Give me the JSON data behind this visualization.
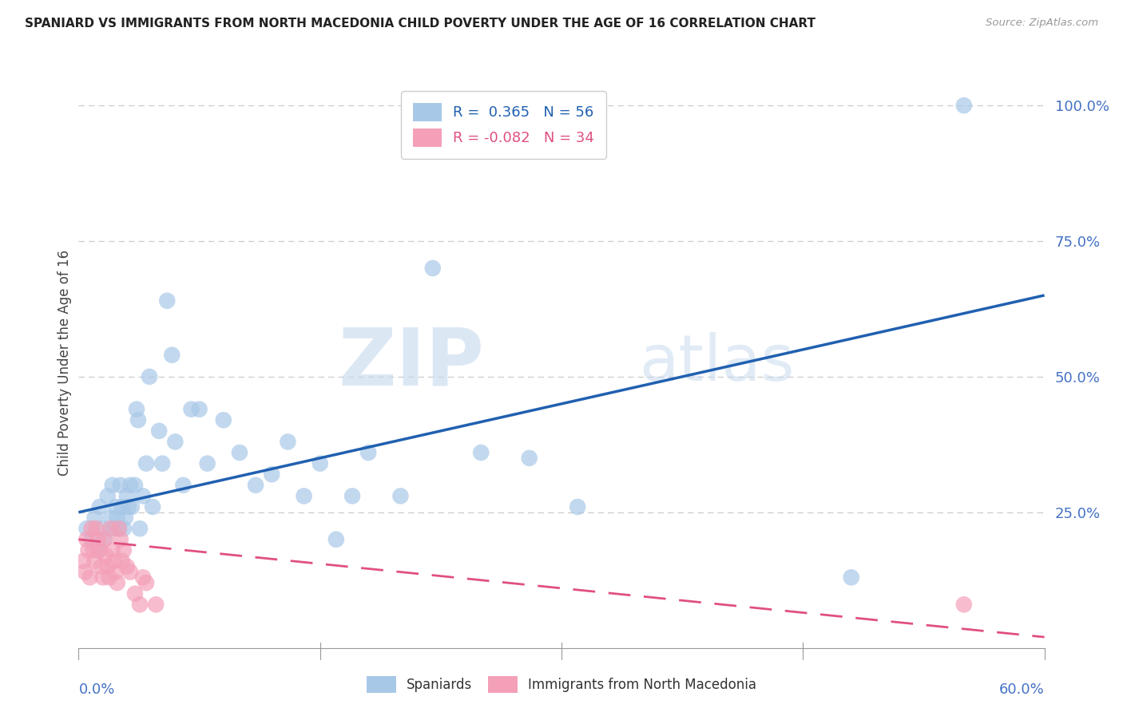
{
  "title": "SPANIARD VS IMMIGRANTS FROM NORTH MACEDONIA CHILD POVERTY UNDER THE AGE OF 16 CORRELATION CHART",
  "source": "Source: ZipAtlas.com",
  "ylabel": "Child Poverty Under the Age of 16",
  "legend_blue_label": "Spaniards",
  "legend_pink_label": "Immigrants from North Macedonia",
  "r_blue": 0.365,
  "n_blue": 56,
  "r_pink": -0.082,
  "n_pink": 34,
  "blue_color": "#a8c8e8",
  "pink_color": "#f4a0b8",
  "trendline_blue_color": "#2060b0",
  "trendline_pink_color": "#e05080",
  "watermark_zip": "ZIP",
  "watermark_atlas": "atlas",
  "blue_scatter_x": [
    0.005,
    0.008,
    0.01,
    0.012,
    0.013,
    0.015,
    0.016,
    0.018,
    0.02,
    0.021,
    0.022,
    0.023,
    0.024,
    0.025,
    0.026,
    0.027,
    0.028,
    0.029,
    0.03,
    0.031,
    0.032,
    0.033,
    0.035,
    0.036,
    0.037,
    0.038,
    0.04,
    0.042,
    0.044,
    0.046,
    0.05,
    0.052,
    0.055,
    0.058,
    0.06,
    0.065,
    0.07,
    0.075,
    0.08,
    0.09,
    0.1,
    0.11,
    0.12,
    0.13,
    0.14,
    0.15,
    0.16,
    0.17,
    0.18,
    0.2,
    0.22,
    0.25,
    0.28,
    0.31,
    0.48,
    0.55
  ],
  "blue_scatter_y": [
    0.22,
    0.2,
    0.24,
    0.18,
    0.26,
    0.22,
    0.2,
    0.28,
    0.24,
    0.3,
    0.22,
    0.26,
    0.24,
    0.22,
    0.3,
    0.26,
    0.22,
    0.24,
    0.28,
    0.26,
    0.3,
    0.26,
    0.3,
    0.44,
    0.42,
    0.22,
    0.28,
    0.34,
    0.5,
    0.26,
    0.4,
    0.34,
    0.64,
    0.54,
    0.38,
    0.3,
    0.44,
    0.44,
    0.34,
    0.42,
    0.36,
    0.3,
    0.32,
    0.38,
    0.28,
    0.34,
    0.2,
    0.28,
    0.36,
    0.28,
    0.7,
    0.36,
    0.35,
    0.26,
    0.13,
    1.0
  ],
  "pink_scatter_x": [
    0.003,
    0.004,
    0.005,
    0.006,
    0.007,
    0.008,
    0.009,
    0.01,
    0.011,
    0.012,
    0.013,
    0.014,
    0.015,
    0.016,
    0.017,
    0.018,
    0.019,
    0.02,
    0.021,
    0.022,
    0.023,
    0.024,
    0.025,
    0.026,
    0.027,
    0.028,
    0.03,
    0.032,
    0.035,
    0.038,
    0.04,
    0.042,
    0.048,
    0.55
  ],
  "pink_scatter_y": [
    0.16,
    0.14,
    0.2,
    0.18,
    0.13,
    0.22,
    0.18,
    0.16,
    0.22,
    0.2,
    0.18,
    0.15,
    0.13,
    0.2,
    0.17,
    0.15,
    0.13,
    0.22,
    0.18,
    0.16,
    0.14,
    0.12,
    0.22,
    0.2,
    0.16,
    0.18,
    0.15,
    0.14,
    0.1,
    0.08,
    0.13,
    0.12,
    0.08,
    0.08
  ],
  "xmin": 0.0,
  "xmax": 0.6,
  "ymin": 0.0,
  "ymax": 1.05,
  "ytick_vals": [
    0.25,
    0.5,
    0.75,
    1.0
  ],
  "ytick_labels": [
    "25.0%",
    "50.0%",
    "75.0%",
    "100.0%"
  ]
}
